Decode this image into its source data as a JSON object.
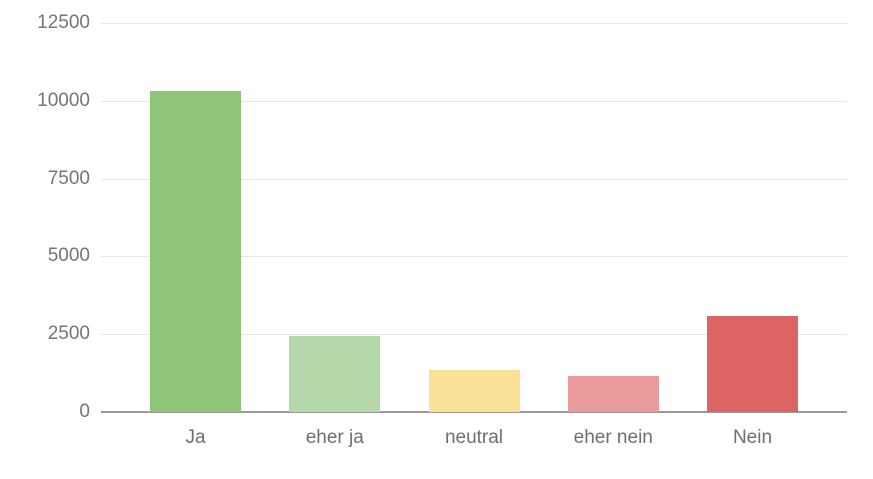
{
  "chart_data": {
    "type": "bar",
    "title": "",
    "xlabel": "",
    "ylabel": "",
    "categories": [
      "Ja",
      "eher ja",
      "neutral",
      "eher nein",
      "Nein"
    ],
    "values": [
      10300,
      2450,
      1350,
      1150,
      3100
    ],
    "colors": [
      "#8ec577",
      "#b4d8aa",
      "#fbe198",
      "#e99b9b",
      "#dc6462"
    ],
    "ylim": [
      0,
      12500
    ],
    "ytick_step": 2500,
    "ytick_labels": [
      "0",
      "2500",
      "5000",
      "7500",
      "10000",
      "12500"
    ],
    "grid": true,
    "legend": "none",
    "background_color": "#ffffff",
    "gridline_color": "#e6e6e6",
    "baseline_color": "#9a9a9a",
    "axis_text_color": "#757575",
    "category_text_color": "#6f6f6f"
  }
}
